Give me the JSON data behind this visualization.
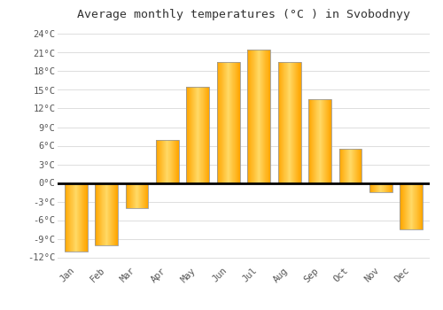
{
  "title": "Average monthly temperatures (°C ) in Svobodnyy",
  "months": [
    "Jan",
    "Feb",
    "Mar",
    "Apr",
    "May",
    "Jun",
    "Jul",
    "Aug",
    "Sep",
    "Oct",
    "Nov",
    "Dec"
  ],
  "values": [
    -11,
    -10,
    -4,
    7,
    15.5,
    19.5,
    21.5,
    19.5,
    13.5,
    5.5,
    -1.5,
    -7.5
  ],
  "bar_color_center": "#FFD966",
  "bar_color_edge": "#FFA500",
  "bar_outline_color": "#999999",
  "background_color": "#FFFFFF",
  "plot_bg_color": "#FFFFFF",
  "grid_color": "#DDDDDD",
  "ytick_labels": [
    "-12°C",
    "-9°C",
    "-6°C",
    "-3°C",
    "0°C",
    "3°C",
    "6°C",
    "9°C",
    "12°C",
    "15°C",
    "18°C",
    "21°C",
    "24°C"
  ],
  "ytick_values": [
    -12,
    -9,
    -6,
    -3,
    0,
    3,
    6,
    9,
    12,
    15,
    18,
    21,
    24
  ],
  "ylim": [
    -13,
    25.5
  ],
  "xlim": [
    -0.6,
    11.6
  ],
  "title_fontsize": 9.5,
  "tick_fontsize": 7.5,
  "font_family": "monospace",
  "bar_width": 0.75
}
